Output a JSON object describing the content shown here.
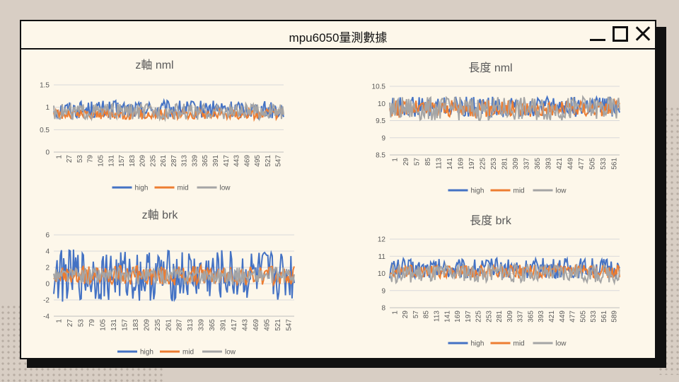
{
  "window": {
    "title": "mpu6050量測數據"
  },
  "colors": {
    "high": "#4472c4",
    "mid": "#ed7d31",
    "low": "#a5a5a5",
    "grid": "#d9d9d9",
    "text": "#595959"
  },
  "chart_data": [
    {
      "type": "line",
      "title": "z軸 nml",
      "ylim": [
        0,
        1.5
      ],
      "yticks": [
        "0",
        "0.5",
        "1",
        "1.5"
      ],
      "ytick_values": [
        0,
        0.5,
        1,
        1.5
      ],
      "xticks": [
        "1",
        "27",
        "53",
        "79",
        "105",
        "131",
        "157",
        "183",
        "209",
        "235",
        "261",
        "287",
        "313",
        "339",
        "365",
        "391",
        "417",
        "443",
        "469",
        "495",
        "521",
        "547"
      ],
      "legend": "bottom",
      "series": [
        {
          "name": "high",
          "level": 0.95,
          "amp": 0.2
        },
        {
          "name": "mid",
          "level": 0.85,
          "amp": 0.12
        },
        {
          "name": "low",
          "level": 0.9,
          "amp": 0.18
        }
      ]
    },
    {
      "type": "line",
      "title": "長度 nml",
      "ylim": [
        8.5,
        10.5
      ],
      "yticks": [
        "8.5",
        "9",
        "9.5",
        "10",
        "10.5"
      ],
      "ytick_values": [
        8.5,
        9,
        9.5,
        10,
        10.5
      ],
      "xticks": [
        "1",
        "29",
        "57",
        "85",
        "113",
        "141",
        "169",
        "197",
        "225",
        "253",
        "281",
        "309",
        "337",
        "365",
        "393",
        "421",
        "449",
        "477",
        "505",
        "533",
        "561"
      ],
      "legend": "bottom",
      "series": [
        {
          "name": "high",
          "level": 9.9,
          "amp": 0.3
        },
        {
          "name": "mid",
          "level": 9.85,
          "amp": 0.25
        },
        {
          "name": "low",
          "level": 9.85,
          "amp": 0.35
        }
      ]
    },
    {
      "type": "line",
      "title": "z軸 brk",
      "ylim": [
        -4,
        6
      ],
      "yticks": [
        "-4",
        "-2",
        "0",
        "2",
        "4",
        "6"
      ],
      "ytick_values": [
        -4,
        -2,
        0,
        2,
        4,
        6
      ],
      "xticks": [
        "1",
        "27",
        "53",
        "79",
        "105",
        "131",
        "157",
        "183",
        "209",
        "235",
        "261",
        "287",
        "313",
        "339",
        "365",
        "391",
        "417",
        "443",
        "469",
        "495",
        "521",
        "547"
      ],
      "legend": "bottom",
      "series": [
        {
          "name": "high",
          "level": 1,
          "amp": 3.2
        },
        {
          "name": "mid",
          "level": 1,
          "amp": 1.2
        },
        {
          "name": "low",
          "level": 1,
          "amp": 1.0
        }
      ]
    },
    {
      "type": "line",
      "title": "長度 brk",
      "ylim": [
        8,
        12
      ],
      "yticks": [
        "8",
        "9",
        "10",
        "11",
        "12"
      ],
      "ytick_values": [
        8,
        9,
        10,
        11,
        12
      ],
      "xticks": [
        "1",
        "29",
        "57",
        "85",
        "113",
        "141",
        "169",
        "197",
        "225",
        "253",
        "281",
        "309",
        "337",
        "365",
        "393",
        "421",
        "449",
        "477",
        "505",
        "533",
        "561",
        "589"
      ],
      "legend": "bottom",
      "series": [
        {
          "name": "high",
          "level": 10.3,
          "amp": 0.6
        },
        {
          "name": "mid",
          "level": 10.1,
          "amp": 0.4
        },
        {
          "name": "low",
          "level": 10.0,
          "amp": 0.55
        }
      ]
    }
  ]
}
